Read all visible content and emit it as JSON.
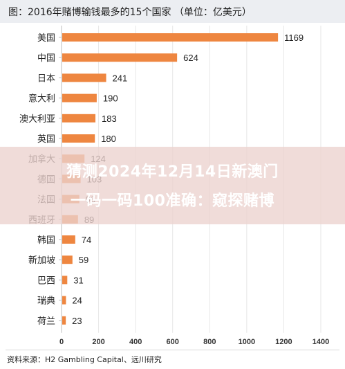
{
  "chart_data": {
    "type": "bar",
    "orientation": "horizontal",
    "title": "图：2016年赌博输钱最多的15个国家 （单位：亿美元）",
    "categories": [
      "美国",
      "中国",
      "日本",
      "意大利",
      "澳大利亚",
      "英国",
      "加拿大",
      "德国",
      "法国",
      "西班牙",
      "韩国",
      "新加坡",
      "巴西",
      "瑞典",
      "荷兰"
    ],
    "values": [
      1169,
      624,
      241,
      190,
      183,
      180,
      124,
      103,
      96,
      89,
      74,
      59,
      31,
      24,
      23
    ],
    "xlim": [
      0,
      1400
    ],
    "xticks": [
      0,
      200,
      400,
      600,
      800,
      1000,
      1200,
      1400
    ],
    "grid": true,
    "bar_color": "#ee8640",
    "source": "资料来源：H2 Gambling Capital、远川研究"
  },
  "overlay": {
    "line1": "猜测2024年12月14日新澳门",
    "line2": "一码一码100准确：窥探赌博"
  }
}
